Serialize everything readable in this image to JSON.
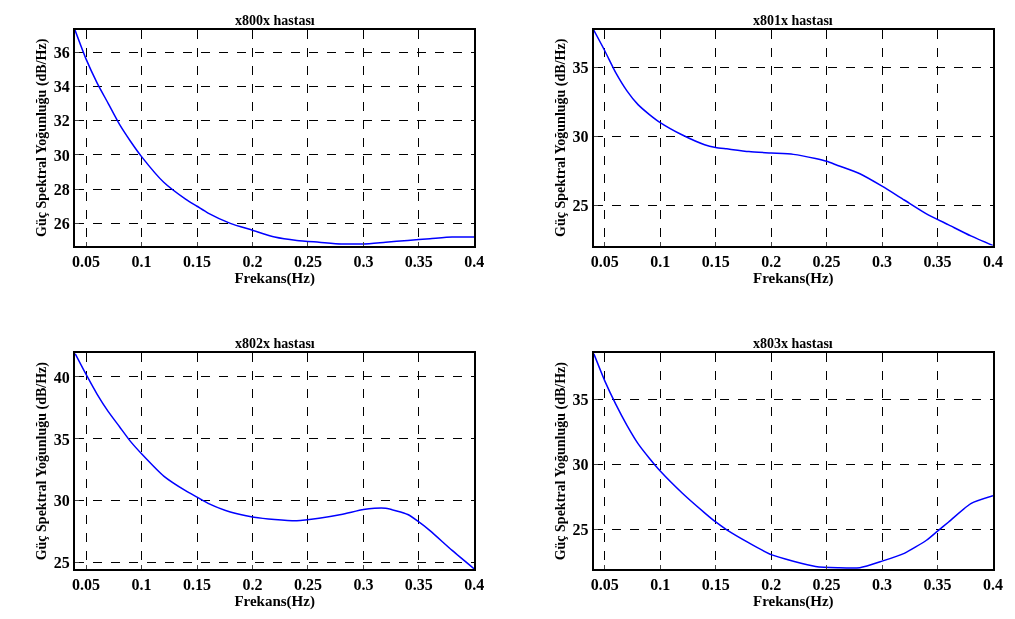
{
  "chart_data": [
    {
      "type": "line",
      "title": "x800x hastası",
      "xlabel": "Frekans(Hz)",
      "ylabel": "Güç Spektral Yoğunluğu (dB/Hz)",
      "grid": true,
      "line_style": "solid",
      "xlim": [
        0.04,
        0.4
      ],
      "ylim": [
        24.7,
        37.3
      ],
      "xticks": [
        0.05,
        0.1,
        0.15,
        0.2,
        0.25,
        0.3,
        0.35,
        0.4
      ],
      "yticks": [
        26,
        28,
        30,
        32,
        34,
        36
      ],
      "x": [
        0.04,
        0.05,
        0.06,
        0.07,
        0.08,
        0.09,
        0.1,
        0.12,
        0.14,
        0.15,
        0.16,
        0.18,
        0.2,
        0.22,
        0.24,
        0.26,
        0.28,
        0.3,
        0.32,
        0.34,
        0.36,
        0.38,
        0.4
      ],
      "series": [
        {
          "color": "#0000ff",
          "values": [
            37.3,
            35.6,
            34.2,
            33.0,
            31.8,
            30.8,
            29.9,
            28.4,
            27.4,
            27.0,
            26.6,
            26.0,
            25.6,
            25.2,
            25.0,
            24.9,
            24.8,
            24.8,
            24.9,
            25.0,
            25.1,
            25.2,
            25.2
          ]
        }
      ]
    },
    {
      "type": "line",
      "title": "x801x hastası",
      "xlabel": "Frekans(Hz)",
      "ylabel": "Güç Spektral Yoğunluğu (dB/Hz)",
      "grid": true,
      "line_style": "solid",
      "xlim": [
        0.04,
        0.4
      ],
      "ylim": [
        22.1,
        37.7
      ],
      "xticks": [
        0.05,
        0.1,
        0.15,
        0.2,
        0.25,
        0.3,
        0.35,
        0.4
      ],
      "yticks": [
        25,
        30,
        35
      ],
      "x": [
        0.04,
        0.05,
        0.06,
        0.07,
        0.08,
        0.09,
        0.1,
        0.12,
        0.14,
        0.15,
        0.16,
        0.18,
        0.2,
        0.22,
        0.24,
        0.25,
        0.26,
        0.28,
        0.3,
        0.32,
        0.34,
        0.36,
        0.38,
        0.4
      ],
      "series": [
        {
          "color": "#0000ff",
          "values": [
            37.7,
            36.2,
            34.6,
            33.3,
            32.3,
            31.6,
            31.0,
            30.1,
            29.4,
            29.2,
            29.1,
            28.9,
            28.8,
            28.7,
            28.4,
            28.2,
            27.9,
            27.3,
            26.4,
            25.4,
            24.4,
            23.6,
            22.8,
            22.1
          ]
        }
      ]
    },
    {
      "type": "line",
      "title": "x802x hastası",
      "xlabel": "Frekans(Hz)",
      "ylabel": "Güç Spektral Yoğunluğu (dB/Hz)",
      "grid": true,
      "line_style": "solid",
      "xlim": [
        0.04,
        0.4
      ],
      "ylim": [
        24.5,
        41.9
      ],
      "xticks": [
        0.05,
        0.1,
        0.15,
        0.2,
        0.25,
        0.3,
        0.35,
        0.4
      ],
      "yticks": [
        25,
        30,
        35,
        40
      ],
      "x": [
        0.04,
        0.05,
        0.06,
        0.07,
        0.08,
        0.09,
        0.1,
        0.12,
        0.14,
        0.15,
        0.16,
        0.18,
        0.2,
        0.22,
        0.24,
        0.26,
        0.28,
        0.3,
        0.31,
        0.32,
        0.34,
        0.35,
        0.36,
        0.38,
        0.4
      ],
      "series": [
        {
          "color": "#0000ff",
          "values": [
            41.9,
            40.2,
            38.6,
            37.2,
            36.0,
            34.8,
            33.8,
            32.0,
            30.8,
            30.3,
            29.8,
            29.1,
            28.7,
            28.5,
            28.4,
            28.6,
            28.9,
            29.3,
            29.4,
            29.4,
            28.9,
            28.3,
            27.6,
            26.0,
            24.5
          ]
        }
      ]
    },
    {
      "type": "line",
      "title": "x803x hastası",
      "xlabel": "Frekans(Hz)",
      "ylabel": "Güç Spektral Yoğunluğu (dB/Hz)",
      "grid": true,
      "line_style": "solid",
      "xlim": [
        0.04,
        0.4
      ],
      "ylim": [
        22.0,
        38.5
      ],
      "xticks": [
        0.05,
        0.1,
        0.15,
        0.2,
        0.25,
        0.3,
        0.35,
        0.4
      ],
      "yticks": [
        25,
        30,
        35
      ],
      "x": [
        0.04,
        0.05,
        0.06,
        0.07,
        0.08,
        0.09,
        0.1,
        0.12,
        0.14,
        0.15,
        0.16,
        0.18,
        0.2,
        0.22,
        0.24,
        0.26,
        0.28,
        0.3,
        0.32,
        0.34,
        0.35,
        0.36,
        0.38,
        0.4
      ],
      "series": [
        {
          "color": "#0000ff",
          "values": [
            38.5,
            36.4,
            34.6,
            33.0,
            31.6,
            30.5,
            29.5,
            27.8,
            26.3,
            25.6,
            25.0,
            24.0,
            23.1,
            22.6,
            22.2,
            22.1,
            22.1,
            22.6,
            23.2,
            24.2,
            24.9,
            25.6,
            27.0,
            27.6
          ]
        }
      ]
    }
  ]
}
